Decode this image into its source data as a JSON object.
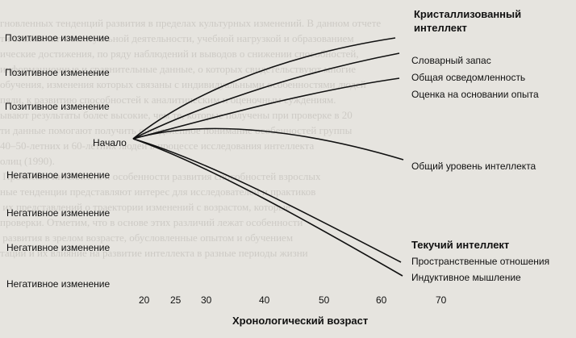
{
  "left_labels": [
    "Позитивное изменение",
    "Позитивное изменение",
    "Позитивное изменение",
    "Негативное изменение",
    "Негативное изменение",
    "Негативное изменение",
    "Негативное изменение"
  ],
  "start_label": "Начало",
  "crystallized": {
    "title_line1": "Кристаллизованный",
    "title_line2": "интеллект",
    "items": [
      "Словарный запас",
      "Общая осведомленность",
      "Оценка на основании опыта"
    ]
  },
  "general_level": "Общий уровень интеллекта",
  "fluid": {
    "title": "Текучий интеллект",
    "items": [
      "Пространственные отношения",
      "Индуктивное мышление"
    ]
  },
  "x_ticks": [
    "20",
    "25",
    "30",
    "40",
    "50",
    "60",
    "70"
  ],
  "x_title": "Хронологический возраст"
}
